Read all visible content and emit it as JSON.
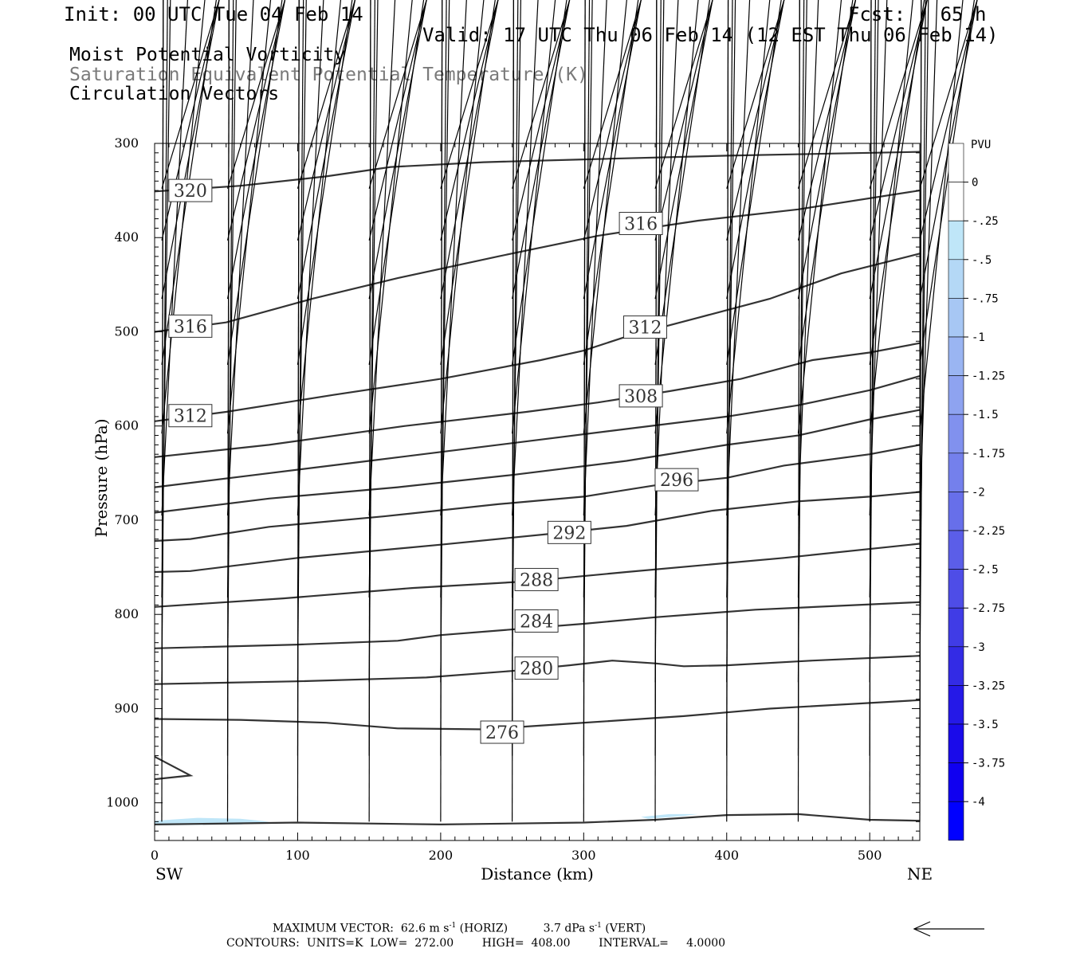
{
  "header": {
    "init": "Init: 00 UTC Tue 04 Feb 14",
    "fcst": "Fcst:   65 h",
    "valid": "Valid: 17 UTC Thu 06 Feb 14 (12 EST Thu 06 Feb 14)",
    "fields": [
      "Moist Potential Vorticity",
      "Saturation Equivalent Potential Temperature (K)",
      "Circulation Vectors"
    ]
  },
  "footer": {
    "max_vector_label": "MAXIMUM VECTOR:",
    "max_horiz": "62.6 m s",
    "horiz_tag": "(HORIZ)",
    "max_vert": "3.7 dPa s",
    "vert_tag": "(VERT)",
    "exponent": "-1",
    "contours": "CONTOURS:  UNITS=K  LOW=  272.00        HIGH=  408.00        INTERVAL=     4.0000"
  },
  "chart_data": {
    "type": "line",
    "xlabel": "Distance (km)",
    "ylabel": "Pressure (hPa)",
    "xlim": [
      0,
      535
    ],
    "ylim": [
      1040,
      300
    ],
    "x_ticks": [
      0,
      100,
      200,
      300,
      400,
      500
    ],
    "y_ticks": [
      300,
      400,
      500,
      600,
      700,
      800,
      900,
      1000
    ],
    "x_end_labels": {
      "left": "SW",
      "right": "NE"
    },
    "grid": false,
    "colorbar": {
      "unit": "PVU",
      "labels": [
        "0",
        "-.25",
        "-.5",
        "-.75",
        "-1",
        "-1.25",
        "-1.5",
        "-1.75",
        "-2",
        "-2.25",
        "-2.5",
        "-2.75",
        "-3",
        "-3.25",
        "-3.5",
        "-3.75",
        "-4"
      ],
      "colors": [
        "#ffffff",
        "#ffffff",
        "#bfe6f8",
        "#b4d8f6",
        "#a7c7f4",
        "#9ab5f2",
        "#8ea3f0",
        "#8191ee",
        "#7480ec",
        "#676fea",
        "#5b5ee8",
        "#4e4de7",
        "#403ce6",
        "#332be5",
        "#2519e7",
        "#1a0bea",
        "#1000f0",
        "#0000ff"
      ]
    },
    "contour_color": "#333333",
    "contours": [
      {
        "level": "320",
        "label_at": [
          25,
          350
        ],
        "points": [
          [
            0,
            351
          ],
          [
            60,
            345
          ],
          [
            120,
            335
          ],
          [
            165,
            325
          ],
          [
            230,
            320
          ],
          [
            300,
            317
          ],
          [
            400,
            313
          ],
          [
            535,
            309
          ]
        ]
      },
      {
        "level": "316",
        "label_at": [
          25,
          494
        ],
        "points": [
          [
            0,
            500
          ],
          [
            50,
            490
          ],
          [
            110,
            465
          ],
          [
            170,
            443
          ],
          [
            240,
            420
          ],
          [
            310,
            398
          ],
          [
            380,
            382
          ],
          [
            450,
            370
          ],
          [
            535,
            350
          ]
        ]
      },
      {
        "level": "316",
        "label_at": [
          340,
          385
        ],
        "points": []
      },
      {
        "level": "312",
        "label_at": [
          25,
          589
        ],
        "points": [
          [
            0,
            595
          ],
          [
            50,
            585
          ],
          [
            125,
            567
          ],
          [
            200,
            550
          ],
          [
            270,
            530
          ],
          [
            300,
            520
          ],
          [
            330,
            505
          ],
          [
            380,
            485
          ],
          [
            430,
            465
          ],
          [
            480,
            438
          ],
          [
            535,
            417
          ]
        ]
      },
      {
        "level": "312",
        "label_at": [
          343,
          495
        ],
        "points": []
      },
      {
        "level": "308",
        "label_at": [
          340,
          568
        ],
        "points": [
          [
            0,
            633
          ],
          [
            80,
            620
          ],
          [
            175,
            600
          ],
          [
            260,
            585
          ],
          [
            310,
            575
          ],
          [
            360,
            563
          ],
          [
            410,
            550
          ],
          [
            460,
            530
          ],
          [
            500,
            522
          ],
          [
            535,
            512
          ]
        ]
      },
      {
        "level": "304",
        "label_at": null,
        "points": [
          [
            0,
            665
          ],
          [
            70,
            652
          ],
          [
            150,
            637
          ],
          [
            230,
            622
          ],
          [
            320,
            605
          ],
          [
            400,
            590
          ],
          [
            450,
            578
          ],
          [
            500,
            562
          ],
          [
            535,
            547
          ]
        ]
      },
      {
        "level": "300",
        "label_at": null,
        "points": [
          [
            0,
            692
          ],
          [
            80,
            677
          ],
          [
            170,
            665
          ],
          [
            250,
            652
          ],
          [
            330,
            637
          ],
          [
            400,
            620
          ],
          [
            450,
            610
          ],
          [
            500,
            593
          ],
          [
            535,
            583
          ]
        ]
      },
      {
        "level": "296",
        "label_at": [
          365,
          657
        ],
        "points": [
          [
            0,
            722
          ],
          [
            25,
            720
          ],
          [
            80,
            707
          ],
          [
            160,
            696
          ],
          [
            240,
            683
          ],
          [
            300,
            675
          ],
          [
            350,
            663
          ],
          [
            400,
            655
          ],
          [
            440,
            642
          ],
          [
            500,
            630
          ],
          [
            535,
            620
          ]
        ]
      },
      {
        "level": "292",
        "label_at": [
          290,
          713
        ],
        "points": [
          [
            0,
            755
          ],
          [
            25,
            754
          ],
          [
            100,
            740
          ],
          [
            200,
            726
          ],
          [
            280,
            714
          ],
          [
            330,
            706
          ],
          [
            390,
            690
          ],
          [
            450,
            680
          ],
          [
            500,
            675
          ],
          [
            535,
            670
          ]
        ]
      },
      {
        "level": "288",
        "label_at": [
          267,
          763
        ],
        "points": [
          [
            0,
            792
          ],
          [
            90,
            783
          ],
          [
            180,
            772
          ],
          [
            260,
            765
          ],
          [
            330,
            755
          ],
          [
            440,
            740
          ],
          [
            535,
            725
          ]
        ]
      },
      {
        "level": "284",
        "label_at": [
          267,
          807
        ],
        "points": [
          [
            0,
            836
          ],
          [
            100,
            832
          ],
          [
            170,
            828
          ],
          [
            200,
            822
          ],
          [
            300,
            810
          ],
          [
            350,
            803
          ],
          [
            420,
            795
          ],
          [
            535,
            787
          ]
        ]
      },
      {
        "level": "280",
        "label_at": [
          267,
          857
        ],
        "points": [
          [
            0,
            874
          ],
          [
            100,
            871
          ],
          [
            190,
            867
          ],
          [
            250,
            860
          ],
          [
            290,
            854
          ],
          [
            320,
            849
          ],
          [
            350,
            852
          ],
          [
            370,
            855
          ],
          [
            400,
            854
          ],
          [
            460,
            849
          ],
          [
            535,
            844
          ]
        ]
      },
      {
        "level": "276",
        "label_at": [
          243,
          925
        ],
        "points": [
          [
            0,
            911
          ],
          [
            60,
            912
          ],
          [
            120,
            915
          ],
          [
            170,
            921
          ],
          [
            230,
            922
          ],
          [
            290,
            916
          ],
          [
            370,
            908
          ],
          [
            430,
            900
          ],
          [
            535,
            891
          ]
        ]
      },
      {
        "level": "",
        "label_at": null,
        "points": [
          [
            0,
            951
          ],
          [
            25,
            971
          ],
          [
            0,
            975
          ]
        ]
      },
      {
        "level": "",
        "label_at": null,
        "points": [
          [
            0,
            1023
          ],
          [
            100,
            1021
          ],
          [
            200,
            1023
          ],
          [
            300,
            1021
          ],
          [
            350,
            1018
          ],
          [
            400,
            1013
          ],
          [
            450,
            1012
          ],
          [
            500,
            1018
          ],
          [
            535,
            1019
          ]
        ]
      }
    ],
    "pv_shading": [
      {
        "value": "-.25",
        "polygons": [
          [
            [
              0,
              1019
            ],
            [
              30,
              1016
            ],
            [
              60,
              1017
            ],
            [
              80,
              1020
            ],
            [
              60,
              1023
            ],
            [
              0,
              1024
            ]
          ],
          [
            [
              340,
              1015
            ],
            [
              360,
              1012
            ],
            [
              380,
              1012
            ],
            [
              370,
              1014
            ],
            [
              345,
              1017
            ]
          ]
        ]
      }
    ],
    "vector_rows": [
      {
        "p": 348,
        "u": [
          40,
          40,
          40,
          40,
          40,
          40,
          40,
          40,
          40,
          40,
          40,
          40
        ],
        "w": [
          0,
          0,
          0,
          0,
          0,
          0,
          0,
          0,
          0,
          -1,
          -1,
          -1
        ]
      },
      {
        "p": 403,
        "u": [
          40,
          40,
          40,
          40,
          40,
          40,
          40,
          40,
          40,
          40,
          40,
          40
        ],
        "w": [
          0,
          0,
          0,
          0,
          0,
          0,
          0,
          0,
          0,
          -1,
          -1,
          -1
        ]
      },
      {
        "p": 465,
        "u": [
          40,
          40,
          40,
          40,
          40,
          40,
          40,
          40,
          40,
          40,
          40,
          40
        ],
        "w": [
          0,
          0,
          0,
          0,
          0,
          0,
          0,
          0,
          -1,
          -1,
          -1,
          -1
        ]
      },
      {
        "p": 535,
        "u": [
          38,
          38,
          38,
          38,
          38,
          38,
          38,
          38,
          38,
          38,
          38,
          38
        ],
        "w": [
          0,
          0,
          0,
          0,
          0,
          0,
          0,
          0,
          -1,
          -1,
          -1,
          -1
        ]
      },
      {
        "p": 608,
        "u": [
          30,
          30,
          30,
          30,
          30,
          30,
          30,
          30,
          30,
          30,
          30,
          30
        ],
        "w": [
          0,
          0,
          0,
          0,
          0,
          0,
          0,
          0,
          0,
          0,
          0,
          0
        ]
      },
      {
        "p": 695,
        "u": [
          18,
          18,
          18,
          18,
          18,
          18,
          16,
          16,
          16,
          14,
          12,
          12
        ],
        "w": [
          1,
          1,
          1,
          1,
          1,
          1,
          0,
          0,
          0,
          0,
          0,
          0
        ]
      },
      {
        "p": 782,
        "u": [
          6,
          6,
          6,
          6,
          6,
          6,
          6,
          6,
          6,
          6,
          6,
          6
        ],
        "w": [
          2,
          2,
          2,
          2,
          2,
          2,
          2,
          2,
          0,
          0,
          0,
          0
        ]
      },
      {
        "p": 872,
        "u": [
          4,
          4,
          4,
          4,
          4,
          4,
          4,
          4,
          4,
          4,
          4,
          4
        ],
        "w": [
          0,
          0,
          0,
          0,
          0,
          0,
          0,
          0,
          0,
          0,
          0,
          0
        ]
      },
      {
        "p": 950,
        "u": [
          1,
          1,
          1,
          1,
          1,
          1,
          1,
          1,
          1,
          1,
          1,
          1
        ],
        "w": [
          0,
          0,
          0,
          0,
          0,
          0,
          0,
          0,
          0,
          0,
          0,
          0
        ]
      },
      {
        "p": 1020,
        "u": [
          1,
          1,
          1,
          1,
          1,
          1,
          1,
          1,
          1,
          1,
          1,
          1
        ],
        "w": [
          0,
          0,
          0,
          0,
          0,
          0,
          0,
          0,
          0,
          0,
          0,
          0
        ]
      }
    ],
    "vector_x": [
      5,
      51,
      100,
      150,
      200,
      250,
      300,
      350,
      400,
      450,
      500,
      535
    ],
    "reference_vector": {
      "u": -62.6,
      "w": 0
    }
  }
}
